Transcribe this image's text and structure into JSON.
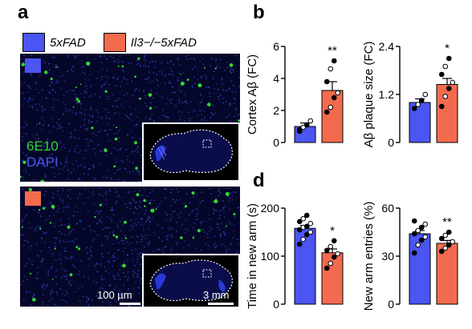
{
  "panel_letters": {
    "a": "a",
    "b": "b",
    "d": "d"
  },
  "legend": {
    "items": [
      {
        "label": "5xFAD",
        "color": "#4a55f2"
      },
      {
        "label": "Il3−/−5xFAD",
        "color": "#f26b4f"
      }
    ]
  },
  "micrographs": {
    "stain_labels": {
      "line1": "6E10",
      "line1_color": "#33d633",
      "line2": "DAPI",
      "line2_color": "#4a55f2"
    },
    "scale_small": "100 µm",
    "scale_large": "3 mm",
    "colors": {
      "background": "#05072a",
      "nuclei": "#3943c8",
      "plaques": "#33d633"
    }
  },
  "chart_data": [
    {
      "id": "cortex-abeta",
      "type": "bar",
      "categories": [
        "5xFAD",
        "Il3−/−5xFAD"
      ],
      "values": [
        1.0,
        3.25
      ],
      "errors": [
        0.22,
        0.55
      ],
      "points": [
        [
          0.7,
          0.95,
          1.1,
          1.35,
          0.8
        ],
        [
          1.9,
          2.2,
          2.8,
          3.1,
          3.8,
          4.6,
          5.1
        ]
      ],
      "ylabel": "Cortex Aβ (FC)",
      "ylim": [
        0,
        6
      ],
      "yticks": [
        0,
        2,
        4,
        6
      ],
      "significance": "**",
      "colors": [
        "#4a55f2",
        "#f26b4f"
      ]
    },
    {
      "id": "plaque-size",
      "type": "bar",
      "categories": [
        "5xFAD",
        "Il3−/−5xFAD"
      ],
      "values": [
        1.0,
        1.45
      ],
      "errors": [
        0.09,
        0.15
      ],
      "points": [
        [
          0.85,
          0.95,
          1.05,
          1.2
        ],
        [
          0.9,
          1.15,
          1.35,
          1.5,
          1.7,
          1.9,
          2.1
        ]
      ],
      "ylabel": "Aβ plaque size (FC)",
      "ylim": [
        0,
        2.4
      ],
      "yticks": [
        0,
        1.2,
        2.4
      ],
      "significance": "*",
      "colors": [
        "#4a55f2",
        "#f26b4f"
      ]
    },
    {
      "id": "time-new-arm",
      "type": "bar",
      "categories": [
        "5xFAD",
        "Il3−/−5xFAD"
      ],
      "values": [
        158,
        107
      ],
      "errors": [
        6,
        8
      ],
      "points": [
        [
          125,
          135,
          145,
          150,
          155,
          160,
          162,
          168,
          172,
          178,
          185
        ],
        [
          75,
          85,
          98,
          105,
          112,
          120,
          132
        ]
      ],
      "ylabel": "Time in new arm (s)",
      "ylim": [
        0,
        200
      ],
      "yticks": [
        0,
        100,
        200
      ],
      "significance": "*",
      "colors": [
        "#4a55f2",
        "#f26b4f"
      ]
    },
    {
      "id": "new-arm-entries",
      "type": "bar",
      "categories": [
        "5xFAD",
        "Il3−/−5xFAD"
      ],
      "values": [
        44,
        38
      ],
      "errors": [
        2,
        1.8
      ],
      "points": [
        [
          32,
          37,
          40,
          42,
          44,
          46,
          48,
          50,
          52
        ],
        [
          33,
          35,
          37,
          39,
          41,
          43,
          45
        ]
      ],
      "ylabel": "New arm entries (%)",
      "ylim": [
        0,
        60
      ],
      "yticks": [
        0,
        30,
        60
      ],
      "significance": "**",
      "colors": [
        "#4a55f2",
        "#f26b4f"
      ]
    }
  ]
}
